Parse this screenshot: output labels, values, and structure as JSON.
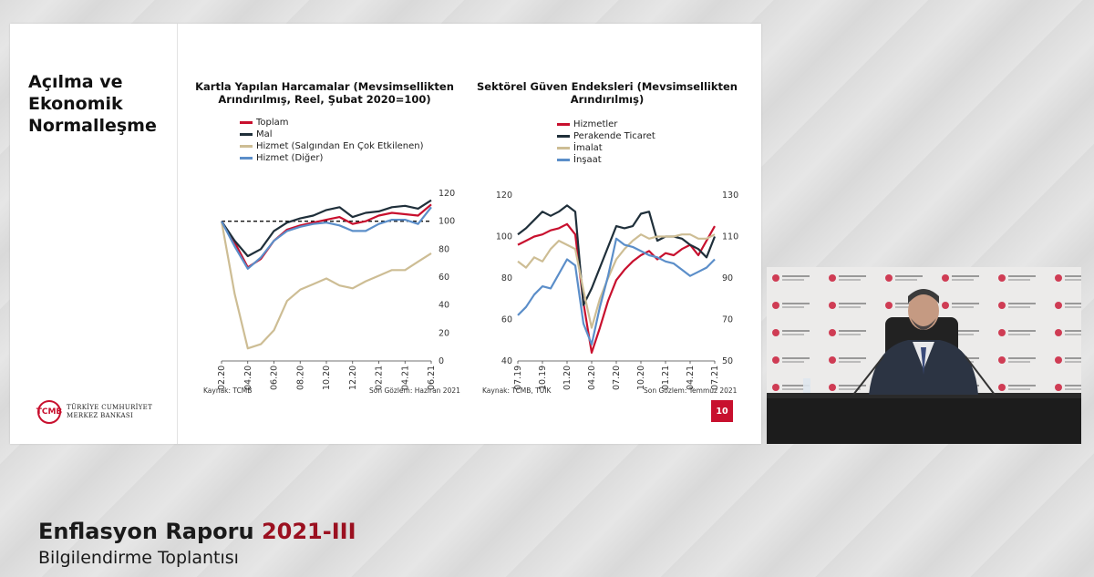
{
  "slide": {
    "section_title": "Açılma ve Ekonomik Normalleşme",
    "page_number": "10",
    "logo": {
      "mark": "TCMB",
      "line1": "TÜRKİYE CUMHURİYET",
      "line2": "MERKEZ BANKASI"
    }
  },
  "banner": {
    "title": "Enflasyon Raporu",
    "title_accent": "2021-III",
    "subtitle": "Bilgilendirme Toplantısı"
  },
  "chart_data": [
    {
      "type": "line",
      "title": "Kartla Yapılan Harcamalar (Mevsimsellikten Arındırılmış, Reel, Şubat 2020=100)",
      "xlabel": "",
      "ylabel": "",
      "ylim": [
        0,
        120
      ],
      "yticks": [
        "0",
        "20",
        "40",
        "60",
        "80",
        "100",
        "120"
      ],
      "xtick_labels": [
        "02.20",
        "04.20",
        "06.20",
        "08.20",
        "10.20",
        "12.20",
        "02.21",
        "04.21",
        "06.21"
      ],
      "x": [
        "02.20",
        "03.20",
        "04.20",
        "05.20",
        "06.20",
        "07.20",
        "08.20",
        "09.20",
        "10.20",
        "11.20",
        "12.20",
        "01.21",
        "02.21",
        "03.21",
        "04.21",
        "05.21",
        "06.21"
      ],
      "reference_line": 100,
      "series": [
        {
          "name": "Toplam",
          "color": "#c8102e",
          "values": [
            100,
            85,
            67,
            73,
            86,
            94,
            97,
            99,
            101,
            103,
            98,
            100,
            104,
            106,
            105,
            104,
            112
          ]
        },
        {
          "name": "Mal",
          "color": "#1f2f3a",
          "values": [
            100,
            86,
            75,
            80,
            93,
            99,
            102,
            104,
            108,
            110,
            103,
            106,
            107,
            110,
            111,
            109,
            115
          ]
        },
        {
          "name": "Hizmet (Salgından En Çok Etkilenen)",
          "color": "#cdbd94",
          "values": [
            100,
            48,
            9,
            12,
            22,
            43,
            51,
            55,
            59,
            54,
            52,
            57,
            61,
            65,
            65,
            71,
            77
          ]
        },
        {
          "name": "Hizmet (Diğer)",
          "color": "#5b8ec9",
          "values": [
            100,
            82,
            66,
            74,
            86,
            93,
            96,
            98,
            99,
            97,
            93,
            93,
            98,
            101,
            101,
            98,
            110
          ]
        }
      ],
      "source": "Kaynak: TCMB",
      "last_obs": "Son Gözlem: Haziran 2021"
    },
    {
      "type": "line",
      "title": "Sektörel Güven Endeksleri (Mevsimsellikten Arındırılmış)",
      "xlabel": "",
      "ylabel": "",
      "ylim": [
        40,
        120
      ],
      "y2lim": [
        50,
        130
      ],
      "yticks": [
        "40",
        "60",
        "80",
        "100",
        "120"
      ],
      "y2ticks": [
        "50",
        "70",
        "90",
        "110",
        "130"
      ],
      "xtick_labels": [
        "07.19",
        "10.19",
        "01.20",
        "04.20",
        "07.20",
        "10.20",
        "01.21",
        "04.21",
        "07.21"
      ],
      "x": [
        "07.19",
        "08.19",
        "09.19",
        "10.19",
        "11.19",
        "12.19",
        "01.20",
        "02.20",
        "03.20",
        "04.20",
        "05.20",
        "06.20",
        "07.20",
        "08.20",
        "09.20",
        "10.20",
        "11.20",
        "12.20",
        "01.21",
        "02.21",
        "03.21",
        "04.21",
        "05.21",
        "06.21",
        "07.21"
      ],
      "series": [
        {
          "name": "Hizmetler",
          "color": "#c8102e",
          "axis": "left",
          "values": [
            96,
            98,
            100,
            101,
            103,
            104,
            106,
            101,
            68,
            44,
            56,
            69,
            79,
            84,
            88,
            91,
            93,
            89,
            92,
            91,
            94,
            96,
            91,
            98,
            105
          ]
        },
        {
          "name": "Perakende Ticaret",
          "color": "#1f2f3a",
          "axis": "left",
          "values": [
            101,
            104,
            108,
            112,
            110,
            112,
            115,
            112,
            67,
            75,
            85,
            95,
            105,
            104,
            105,
            111,
            112,
            98,
            100,
            100,
            99,
            96,
            94,
            90,
            100
          ]
        },
        {
          "name": "İmalat",
          "color": "#cdbd94",
          "axis": "right",
          "values": [
            98,
            95,
            100,
            98,
            104,
            108,
            106,
            104,
            84,
            66,
            80,
            90,
            99,
            104,
            108,
            111,
            109,
            110,
            110,
            110,
            111,
            111,
            109,
            109,
            111
          ]
        },
        {
          "name": "İnşaat",
          "color": "#5b8ec9",
          "axis": "right",
          "values": [
            72,
            76,
            82,
            86,
            85,
            92,
            99,
            96,
            68,
            58,
            76,
            91,
            109,
            106,
            105,
            103,
            101,
            100,
            98,
            97,
            94,
            91,
            93,
            95,
            99
          ]
        }
      ],
      "source": "Kaynak: TCMB, TÜİK",
      "last_obs": "Son Gözlem: Temmuz 2021"
    }
  ],
  "colors": {
    "accent": "#c8102e",
    "dark": "#1f2f3a",
    "beige": "#cdbd94",
    "blue": "#5b8ec9",
    "banner_accent": "#9b1020"
  }
}
